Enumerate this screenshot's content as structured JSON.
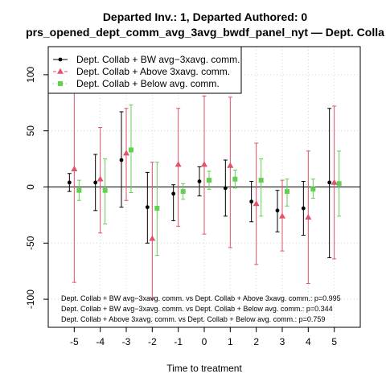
{
  "chart_data": {
    "type": "scatter",
    "title": "Departed Inv.: 1, Departed Authored: 0",
    "subtitle": "prs_opened_dept_comm_avg_3avg_bwdf_panel_nyt — Dept. Colla",
    "xlabel": "Time to treatment",
    "ylabel": "",
    "x": [
      -5,
      -4,
      -3,
      -2,
      -1,
      0,
      1,
      2,
      3,
      4,
      5
    ],
    "xlim": [
      -6,
      6
    ],
    "ylim": [
      -125,
      125
    ],
    "yticks": [
      -100,
      -50,
      0,
      50,
      100
    ],
    "grid": true,
    "legend_position": "top-left",
    "series": [
      {
        "name": "Dept. Collab + BW avg−3xavg. comm.",
        "color": "#000000",
        "marker": "circle",
        "line_style": "solid",
        "estimates": [
          4,
          4,
          24,
          -18,
          -6,
          5,
          -1,
          -13,
          -21,
          -19,
          4
        ],
        "ci_low": [
          -4,
          -21,
          -18,
          -50,
          -30,
          -8,
          -26,
          -31,
          -40,
          -43,
          -63
        ],
        "ci_high": [
          12,
          29,
          67,
          13,
          2,
          18,
          24,
          5,
          -3,
          5,
          70
        ]
      },
      {
        "name": "Dept. Collab + Above 3xavg. comm.",
        "color": "#DF536B",
        "marker": "triangle",
        "line_style": "dashed",
        "estimates": [
          16,
          7,
          30,
          -46,
          20,
          20,
          19,
          -15,
          -26,
          -27,
          4
        ],
        "ci_low": [
          -85,
          -41,
          -12,
          -100,
          -35,
          -42,
          -54,
          -69,
          -57,
          -86,
          -64
        ],
        "ci_high": [
          100,
          53,
          70,
          22,
          70,
          81,
          80,
          39,
          6,
          32,
          72
        ]
      },
      {
        "name": "Dept. Collab + Below avg. comm.",
        "color": "#61D04F",
        "marker": "square",
        "line_style": "dotted",
        "estimates": [
          -3,
          -3,
          33,
          -19,
          -4,
          6,
          7,
          6,
          -4,
          -2,
          3
        ],
        "ci_low": [
          -12,
          -33,
          -5,
          -61,
          -11,
          -2,
          -1,
          -26,
          -17,
          -10,
          -26
        ],
        "ci_high": [
          6,
          25,
          73,
          22,
          3,
          14,
          15,
          25,
          7,
          7,
          32
        ]
      }
    ],
    "annotations": [
      "Dept. Collab + BW avg−3xavg. comm. vs Dept. Collab + Above 3xavg. comm.: p=0.995",
      "Dept. Collab + BW avg−3xavg. comm. vs Dept. Collab + Below avg. comm.: p=0.344",
      "Dept. Collab + Above 3xavg. comm. vs Dept. Collab + Below avg. comm.: p=0.759"
    ]
  }
}
